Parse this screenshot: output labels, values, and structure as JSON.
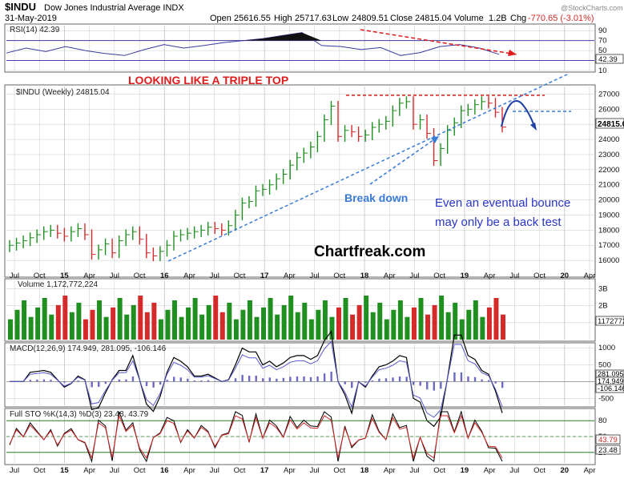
{
  "header": {
    "symbol": "$INDU",
    "name": "Dow Jones Industrial Average INDX",
    "date": "31-May-2019",
    "open_label": "Open",
    "open": "25616.55",
    "high_label": "High",
    "high": "25717.63",
    "low_label": "Low",
    "low": "24809.51",
    "close_label": "Close",
    "close": "24815.04",
    "volume_label": "Volume",
    "volume": "1.2B",
    "chg_label": "Chg",
    "chg": "-770.65 (-3.01%)",
    "credit": "@StockCharts.com"
  },
  "colors": {
    "up": "#1f8f1f",
    "down": "#d42a2a",
    "annotation_red": "#e11b1b",
    "annotation_blue": "#3a7bd5",
    "panel_border": "#555555",
    "grid": "#c8c8c8"
  },
  "chart_data": [
    {
      "type": "line",
      "panel": "rsi",
      "legend": "RSI(14) 42.39",
      "current": 42.39,
      "ylim": [
        10,
        100
      ],
      "yticks": [
        10,
        30,
        50,
        70,
        90
      ],
      "ytick_labels": [
        "10",
        "30",
        "50",
        "70",
        "90"
      ],
      "reference_lines": [
        30,
        70
      ],
      "x": [
        0,
        10,
        20,
        30,
        40,
        50,
        60,
        70,
        80,
        90,
        100,
        110,
        120,
        130,
        140,
        150,
        160,
        170,
        180,
        190,
        200,
        210,
        220,
        230,
        240,
        250
      ],
      "values": [
        45,
        55,
        48,
        58,
        50,
        44,
        40,
        52,
        62,
        55,
        60,
        66,
        70,
        74,
        80,
        86,
        60,
        58,
        52,
        56,
        40,
        46,
        58,
        62,
        55,
        42.39
      ]
    },
    {
      "type": "bar",
      "panel": "price",
      "legend": "$INDU (Weekly) 24815.04",
      "current_label": "24815.0",
      "ylim": [
        15000,
        27500
      ],
      "yticks": [
        16000,
        17000,
        18000,
        19000,
        20000,
        21000,
        22000,
        23000,
        24000,
        25000,
        26000,
        27000
      ],
      "ytick_labels": [
        "16000",
        "17000",
        "18000",
        "19000",
        "20000",
        "21000",
        "22000",
        "23000",
        "24000",
        "25000",
        "26000",
        "27000"
      ],
      "x_label_points": [
        0,
        16,
        32,
        48,
        64,
        80,
        96,
        112,
        128,
        144,
        160,
        176,
        192,
        208,
        224,
        240,
        256,
        272
      ],
      "close": [
        17000,
        17150,
        17300,
        17500,
        17700,
        17900,
        18000,
        17800,
        17600,
        17900,
        18100,
        17700,
        16400,
        16700,
        17100,
        16500,
        17300,
        17700,
        17900,
        17400,
        16500,
        16300,
        16600,
        17000,
        17600,
        17700,
        17800,
        17900,
        18000,
        18200,
        18100,
        18000,
        18300,
        19000,
        19800,
        19900,
        20600,
        20700,
        21000,
        21400,
        21700,
        22300,
        22800,
        23100,
        23500,
        24200,
        25300,
        26200,
        24200,
        24600,
        24500,
        24200,
        24300,
        24800,
        25000,
        25200,
        25900,
        26400,
        26500,
        25000,
        25300,
        24400,
        22600,
        23400,
        24600,
        25100,
        25900,
        26000,
        26300,
        26500,
        26400,
        25800,
        24815
      ]
    },
    {
      "type": "bar",
      "panel": "volume",
      "legend": "Volume 1,172,772,224",
      "current_label": "1172772224",
      "ylim": [
        0,
        3500000000
      ],
      "yticks": [
        1000000000,
        2000000000,
        3000000000
      ],
      "ytick_labels": [
        "1B",
        "2B",
        "3B"
      ]
    },
    {
      "type": "line",
      "panel": "macd",
      "legend": "MACD(12,26,9) 174.949, 281.095, -106.146",
      "macd": 174.949,
      "signal": 281.095,
      "histogram": -106.146,
      "ylim": [
        -700,
        1100
      ],
      "yticks": [
        -500,
        0,
        500,
        1000
      ],
      "ytick_labels": [
        "-500",
        "0",
        "500",
        "1000"
      ],
      "current_labels": [
        "281.095",
        "174.949",
        "-106.146"
      ]
    },
    {
      "type": "line",
      "panel": "stochastic",
      "legend": "Full STO %K(14,3) %D(3) 23.48, 43.79",
      "k": 23.48,
      "d": 43.79,
      "ylim": [
        0,
        100
      ],
      "yticks": [
        20,
        50,
        80
      ],
      "ytick_labels": [
        "20",
        "50",
        "80"
      ],
      "reference_lines": [
        20,
        80
      ],
      "current_labels": [
        "43.79",
        "23.48"
      ]
    }
  ],
  "x_axis": {
    "labels": [
      "Jul",
      "Oct",
      "15",
      "Apr",
      "Jul",
      "Oct",
      "16",
      "Apr",
      "Jul",
      "Oct",
      "17",
      "Apr",
      "Jul",
      "Oct",
      "18",
      "Apr",
      "Jul",
      "Oct",
      "19",
      "Apr",
      "Jul",
      "Oct",
      "20",
      "Apr"
    ],
    "year_labels": [
      "15",
      "16",
      "17",
      "18",
      "19",
      "20"
    ]
  },
  "annotations": {
    "title": "LOOKING LIKE A TRIPLE TOP",
    "breakdown": "Break down",
    "bounce_line1": "Even an eventual  bounce",
    "bounce_line2": "may only be a back test",
    "watermark": "Chartfreak.com"
  }
}
